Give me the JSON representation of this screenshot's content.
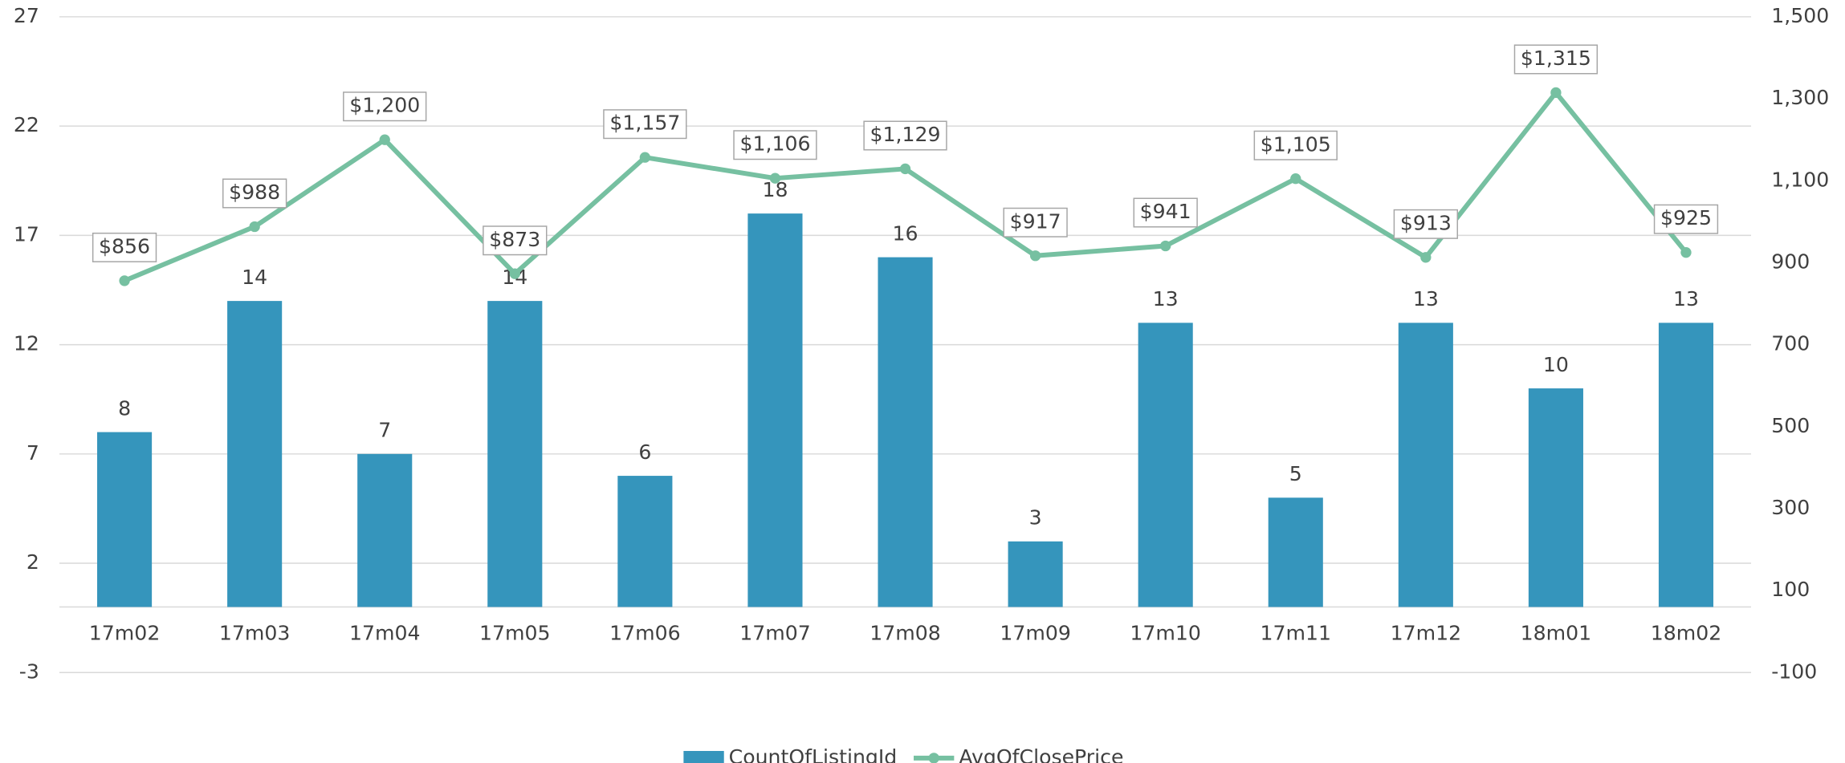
{
  "chart_data": {
    "type": "bar",
    "categories": [
      "17m02",
      "17m03",
      "17m04",
      "17m05",
      "17m06",
      "17m07",
      "17m08",
      "17m09",
      "17m10",
      "17m11",
      "17m12",
      "18m01",
      "18m02"
    ],
    "series": [
      {
        "name": "CountOfListingId",
        "type": "bar",
        "color": "#3595bc",
        "values": [
          8,
          14,
          7,
          14,
          6,
          18,
          16,
          3,
          13,
          5,
          13,
          10,
          13
        ]
      },
      {
        "name": "AvgOfClosePrice",
        "type": "line",
        "axis": "y2",
        "color": "#76c0a1",
        "values": [
          856,
          988,
          1200,
          873,
          1157,
          1106,
          1129,
          917,
          941,
          1105,
          913,
          1315,
          925
        ],
        "value_labels": [
          "$856",
          "$988",
          "$1,200",
          "$873",
          "$1,157",
          "$1,106",
          "$1,129",
          "$917",
          "$941",
          "$1,105",
          "$913",
          "$1,315",
          "$925"
        ]
      }
    ],
    "ylim": [
      -3,
      27
    ],
    "yticks": [
      -3,
      2,
      7,
      12,
      17,
      22,
      27
    ],
    "y2lim": [
      -100,
      1500
    ],
    "y2ticks": [
      -100,
      100,
      300,
      500,
      700,
      900,
      {
        "value": 1100,
        "label": "1,100"
      },
      {
        "value": 1300,
        "label": "1,300"
      },
      {
        "value": 1500,
        "label": "1,500"
      }
    ],
    "grid": true,
    "legend": "bottom"
  }
}
